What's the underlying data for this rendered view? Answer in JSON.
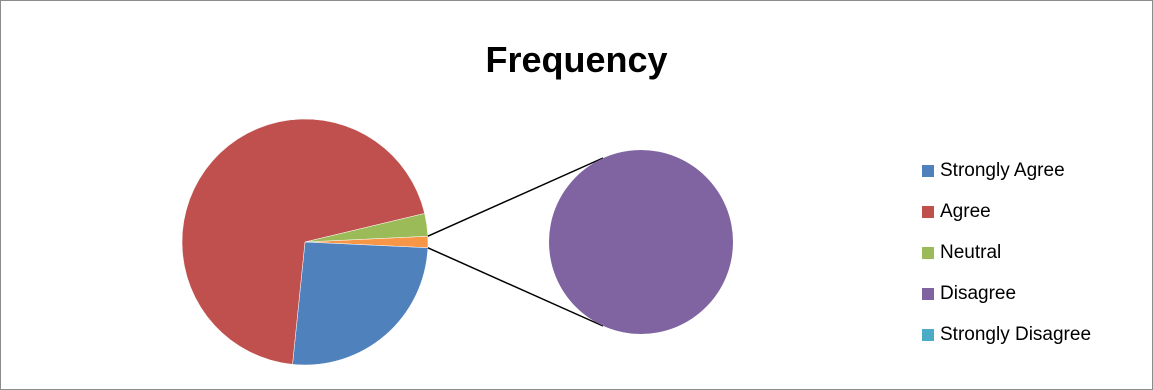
{
  "chart_data": {
    "type": "pie",
    "subtype": "pie-of-pie",
    "title": "Frequency",
    "categories": [
      "Strongly Agree",
      "Agree",
      "Neutral",
      "Disagree",
      "Strongly Disagree"
    ],
    "values": [
      26,
      70,
      3,
      1.5,
      0
    ],
    "secondary_pie": {
      "categories": [
        "Disagree"
      ],
      "values": [
        1.5
      ]
    },
    "colors": [
      "#4F81BD",
      "#C0504D",
      "#9BBB59",
      "#8064A2",
      "#4BACC6"
    ],
    "combined_slice_color": "#F79646",
    "legend_position": "right"
  }
}
